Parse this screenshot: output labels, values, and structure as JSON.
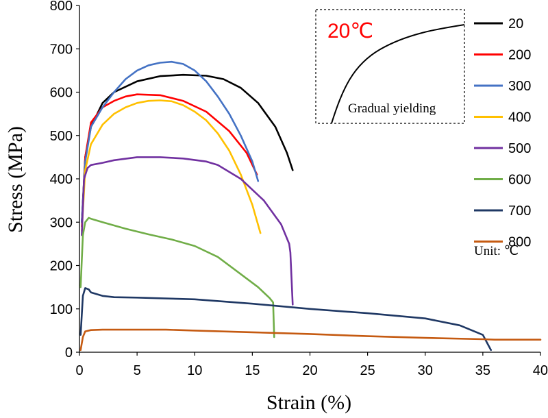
{
  "chart_data": {
    "type": "line",
    "title": "",
    "xlabel": "Strain (%)",
    "ylabel": "Stress (MPa)",
    "xlim": [
      0,
      40
    ],
    "ylim": [
      0,
      800
    ],
    "xticks": [
      "0",
      "5",
      "10",
      "15",
      "20",
      "25",
      "30",
      "35",
      "40"
    ],
    "yticks": [
      "0",
      "100",
      "200",
      "300",
      "400",
      "500",
      "600",
      "700",
      "800"
    ],
    "grid": false,
    "legend_position": "right",
    "legend_unit": "Unit: ℃",
    "series": [
      {
        "name": "20",
        "color": "#000000",
        "x": [
          0.2,
          0.5,
          1.0,
          2.0,
          3.0,
          5.0,
          7.0,
          9.0,
          11.0,
          12.5,
          14.0,
          15.5,
          17.0,
          18.0,
          18.5
        ],
        "y": [
          300,
          450,
          520,
          575,
          600,
          625,
          637,
          640,
          638,
          630,
          610,
          575,
          520,
          460,
          420
        ]
      },
      {
        "name": "200",
        "color": "#ff0000",
        "x": [
          0.2,
          0.5,
          1.0,
          2.0,
          3.0,
          4.0,
          5.0,
          7.0,
          9.0,
          11.0,
          13.0,
          14.5,
          15.4
        ],
        "y": [
          290,
          450,
          530,
          565,
          580,
          590,
          595,
          593,
          580,
          555,
          510,
          460,
          410
        ]
      },
      {
        "name": "300",
        "color": "#4472c4",
        "x": [
          0.2,
          0.5,
          1.0,
          2.0,
          3.0,
          4.0,
          5.0,
          6.0,
          7.0,
          8.0,
          9.0,
          10.0,
          11.0,
          12.0,
          13.0,
          14.0,
          15.0,
          15.5
        ],
        "y": [
          300,
          440,
          520,
          565,
          600,
          630,
          650,
          662,
          668,
          670,
          665,
          650,
          625,
          590,
          550,
          500,
          440,
          395
        ]
      },
      {
        "name": "400",
        "color": "#ffc000",
        "x": [
          0.2,
          0.5,
          1.0,
          2.0,
          3.0,
          4.0,
          5.0,
          6.0,
          7.0,
          8.0,
          9.0,
          10.0,
          11.0,
          12.0,
          13.0,
          14.0,
          15.0,
          15.7
        ],
        "y": [
          280,
          420,
          480,
          525,
          550,
          565,
          575,
          580,
          581,
          579,
          570,
          555,
          535,
          505,
          465,
          410,
          340,
          275
        ]
      },
      {
        "name": "500",
        "color": "#7030a0",
        "x": [
          0.2,
          0.4,
          0.7,
          1.0,
          2.0,
          3.0,
          5.0,
          7.0,
          9.0,
          11.0,
          12.0,
          14.0,
          16.0,
          17.5,
          18.2,
          18.3,
          18.5
        ],
        "y": [
          270,
          400,
          425,
          432,
          437,
          443,
          450,
          450,
          447,
          440,
          432,
          400,
          350,
          295,
          250,
          230,
          110
        ]
      },
      {
        "name": "600",
        "color": "#70ad47",
        "x": [
          0.1,
          0.3,
          0.5,
          0.8,
          1.0,
          2.0,
          4.0,
          6.0,
          8.0,
          10.0,
          12.0,
          14.0,
          15.5,
          16.5,
          16.8,
          16.9
        ],
        "y": [
          150,
          270,
          300,
          310,
          308,
          300,
          285,
          272,
          260,
          245,
          220,
          180,
          150,
          125,
          115,
          35
        ]
      },
      {
        "name": "700",
        "color": "#1f3864",
        "x": [
          0.1,
          0.3,
          0.5,
          0.8,
          1.0,
          2.0,
          3.0,
          5.0,
          10.0,
          15.0,
          20.0,
          25.0,
          30.0,
          33.0,
          35.0,
          35.5,
          35.7
        ],
        "y": [
          40,
          130,
          148,
          145,
          138,
          130,
          127,
          126,
          122,
          112,
          100,
          90,
          78,
          62,
          40,
          15,
          5
        ]
      },
      {
        "name": "800",
        "color": "#c55a11",
        "x": [
          0.1,
          0.3,
          0.5,
          1.0,
          2.0,
          5.0,
          7.5,
          10.0,
          15.0,
          20.0,
          25.0,
          30.0,
          35.0,
          36.0,
          40.0
        ],
        "y": [
          5,
          35,
          48,
          51,
          52,
          52,
          52,
          50,
          46,
          42,
          37,
          33,
          30,
          29,
          29
        ]
      }
    ],
    "inset": {
      "title": "20℃",
      "title_color": "#ff0000",
      "caption": "Gradual yielding"
    }
  }
}
